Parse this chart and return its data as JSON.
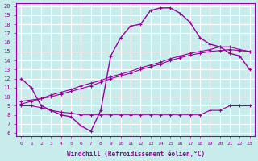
{
  "xlabel": "Windchill (Refroidissement éolien,°C)",
  "bg_color": "#c8ecec",
  "grid_color": "#ffffff",
  "line_color": "#990099",
  "xlim": [
    -0.5,
    23.5
  ],
  "ylim": [
    5.7,
    20.3
  ],
  "xticks": [
    0,
    1,
    2,
    3,
    4,
    5,
    6,
    7,
    8,
    9,
    10,
    11,
    12,
    13,
    14,
    15,
    16,
    17,
    18,
    19,
    20,
    21,
    22,
    23
  ],
  "yticks": [
    6,
    7,
    8,
    9,
    10,
    11,
    12,
    13,
    14,
    15,
    16,
    17,
    18,
    19,
    20
  ],
  "curve_x": [
    0,
    1,
    2,
    3,
    4,
    5,
    6,
    7,
    8,
    9,
    10,
    11,
    12,
    13,
    14,
    15,
    16,
    17,
    18,
    19,
    20,
    21,
    22,
    23
  ],
  "curve_y": [
    12.0,
    11.0,
    9.0,
    8.5,
    8.0,
    7.8,
    6.8,
    6.2,
    8.5,
    14.5,
    16.5,
    17.8,
    18.0,
    19.5,
    19.8,
    19.8,
    19.2,
    18.2,
    16.5,
    15.8,
    15.5,
    14.8,
    14.5,
    13.0
  ],
  "line1_x": [
    0,
    1,
    2,
    3,
    4,
    5,
    6,
    7,
    8,
    9,
    10,
    11,
    12,
    13,
    14,
    15,
    16,
    17,
    18,
    19,
    20,
    21,
    22,
    23
  ],
  "line1_y": [
    9.0,
    9.0,
    8.8,
    8.5,
    8.3,
    8.2,
    8.0,
    8.0,
    8.0,
    8.0,
    8.0,
    8.0,
    8.0,
    8.0,
    8.0,
    8.0,
    8.0,
    8.0,
    8.0,
    8.5,
    8.5,
    9.0,
    9.0,
    9.0
  ],
  "line2_x": [
    0,
    2,
    3,
    4,
    5,
    6,
    7,
    8,
    9,
    10,
    11,
    12,
    13,
    14,
    15,
    16,
    17,
    18,
    19,
    20,
    21,
    22,
    23
  ],
  "line2_y": [
    9.5,
    9.8,
    10.2,
    10.5,
    10.8,
    11.2,
    11.5,
    11.8,
    12.2,
    12.5,
    12.8,
    13.2,
    13.5,
    13.8,
    14.2,
    14.5,
    14.8,
    15.0,
    15.2,
    15.5,
    15.5,
    15.2,
    15.0
  ],
  "line3_x": [
    0,
    1,
    2,
    3,
    4,
    5,
    6,
    7,
    8,
    9,
    10,
    11,
    12,
    13,
    14,
    15,
    16,
    17,
    18,
    19,
    20,
    21,
    22,
    23
  ],
  "line3_y": [
    9.2,
    9.5,
    9.8,
    10.0,
    10.3,
    10.6,
    10.9,
    11.2,
    11.6,
    12.0,
    12.3,
    12.6,
    13.0,
    13.3,
    13.6,
    14.0,
    14.3,
    14.6,
    14.8,
    15.0,
    15.1,
    15.2,
    15.1,
    15.0
  ]
}
